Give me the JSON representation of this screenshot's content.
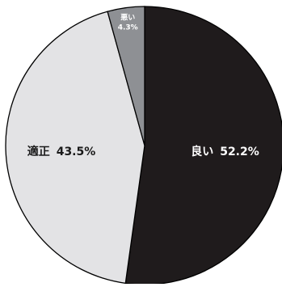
{
  "chart_data": {
    "type": "pie",
    "title": "",
    "slices": [
      {
        "label": "良い",
        "value": 52.2,
        "value_label": "52.2%",
        "color": "#1f1b1c",
        "text_color": "#ffffff"
      },
      {
        "label": "適正",
        "value": 43.5,
        "value_label": "43.5%",
        "color": "#e3e3e5",
        "text_color": "#1a1a1a"
      },
      {
        "label": "悪い",
        "value": 4.3,
        "value_label": "4.3%",
        "color": "#8e9094",
        "text_color": "#ffffff"
      }
    ],
    "start": "12 o'clock",
    "direction": "clockwise",
    "edge_color": "#000000",
    "legend": "none"
  }
}
